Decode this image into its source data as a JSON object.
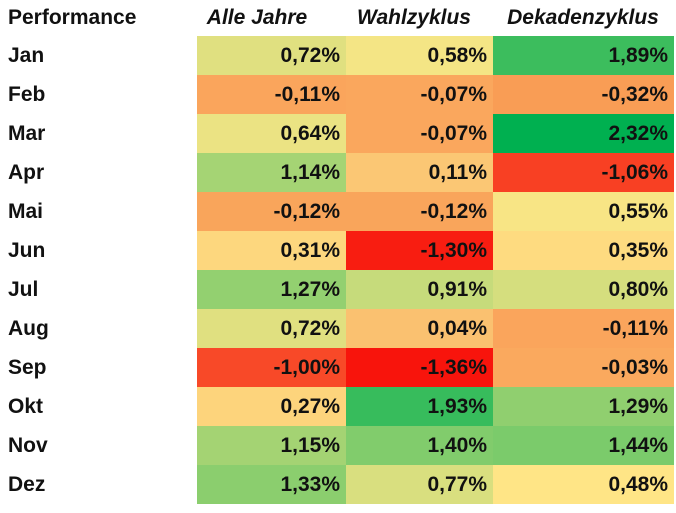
{
  "chart_data": {
    "type": "heatmap",
    "corner_label": "Performance",
    "columns": [
      "Alle Jahre",
      "Wahlzyklus",
      "Dekadenzyklus"
    ],
    "rows": [
      {
        "label": "Jan",
        "values": [
          0.72,
          0.58,
          1.89
        ],
        "text": [
          "0,72%",
          "0,58%",
          "1,89%"
        ]
      },
      {
        "label": "Feb",
        "values": [
          -0.11,
          -0.07,
          -0.32
        ],
        "text": [
          "-0,11%",
          "-0,07%",
          "-0,32%"
        ]
      },
      {
        "label": "Mar",
        "values": [
          0.64,
          -0.07,
          2.32
        ],
        "text": [
          "0,64%",
          "-0,07%",
          "2,32%"
        ]
      },
      {
        "label": "Apr",
        "values": [
          1.14,
          0.11,
          -1.06
        ],
        "text": [
          "1,14%",
          "0,11%",
          "-1,06%"
        ]
      },
      {
        "label": "Mai",
        "values": [
          -0.12,
          -0.12,
          0.55
        ],
        "text": [
          "-0,12%",
          "-0,12%",
          "0,55%"
        ]
      },
      {
        "label": "Jun",
        "values": [
          0.31,
          -1.3,
          0.35
        ],
        "text": [
          "0,31%",
          "-1,30%",
          "0,35%"
        ]
      },
      {
        "label": "Jul",
        "values": [
          1.27,
          0.91,
          0.8
        ],
        "text": [
          "1,27%",
          "0,91%",
          "0,80%"
        ]
      },
      {
        "label": "Aug",
        "values": [
          0.72,
          0.04,
          -0.11
        ],
        "text": [
          "0,72%",
          "0,04%",
          "-0,11%"
        ]
      },
      {
        "label": "Sep",
        "values": [
          -1.0,
          -1.36,
          -0.03
        ],
        "text": [
          "-1,00%",
          "-1,36%",
          "-0,03%"
        ]
      },
      {
        "label": "Okt",
        "values": [
          0.27,
          1.93,
          1.29
        ],
        "text": [
          "0,27%",
          "1,93%",
          "1,29%"
        ]
      },
      {
        "label": "Nov",
        "values": [
          1.15,
          1.4,
          1.44
        ],
        "text": [
          "1,15%",
          "1,40%",
          "1,44%"
        ]
      },
      {
        "label": "Dez",
        "values": [
          1.33,
          0.77,
          0.48
        ],
        "text": [
          "1,33%",
          "0,77%",
          "0,48%"
        ]
      }
    ],
    "color_scale": {
      "low": "#f8140c",
      "mid": "#ffe787",
      "high": "#00b050"
    }
  }
}
